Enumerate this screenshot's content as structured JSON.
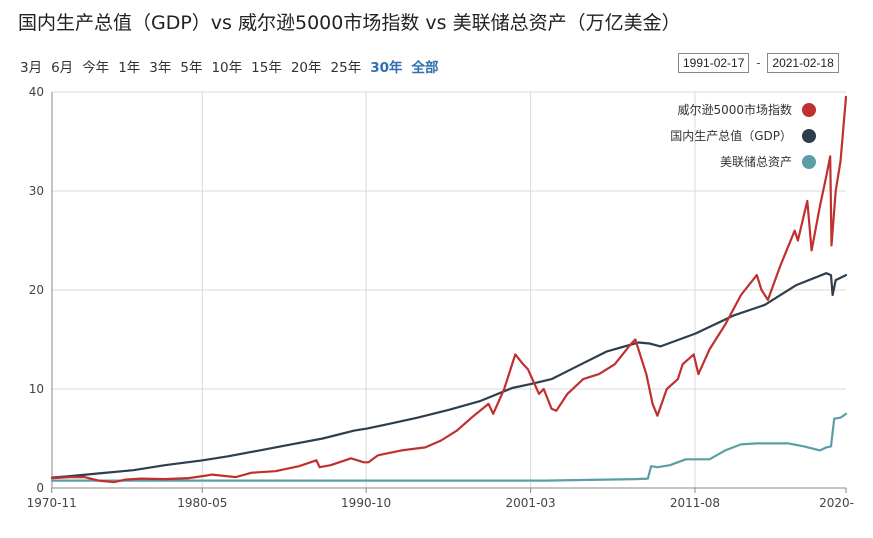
{
  "header": {
    "title": "国内生产总值（GDP）vs 威尔逊5000市场指数 vs 美联储总资产（万亿美金）"
  },
  "range_buttons": [
    "3月",
    "6月",
    "今年",
    "1年",
    "3年",
    "5年",
    "10年",
    "15年",
    "20年",
    "25年",
    "30年",
    "全部"
  ],
  "active_ranges": [
    "30年",
    "全部"
  ],
  "date_range": {
    "from": "1991-02-17",
    "separator": "-",
    "to": "2021-02-18"
  },
  "colors": {
    "wilshire": "#c0302e",
    "gdp": "#2f3e4c",
    "fed": "#5b9ea6",
    "grid": "#d9d9d9"
  },
  "chart_data": {
    "type": "line",
    "title": "国内生产总值（GDP）vs 威尔逊5000市场指数 vs 美联储总资产（万亿美金）",
    "x_type": "year",
    "xlim": [
      1970.85,
      2021.15
    ],
    "ylim": [
      0,
      40
    ],
    "y_ticks": [
      0,
      10,
      20,
      30,
      40
    ],
    "x_ticks": [
      {
        "label": "1970-11",
        "x": 1970.83
      },
      {
        "label": "1980-05",
        "x": 1980.37
      },
      {
        "label": "1990-10",
        "x": 1990.75
      },
      {
        "label": "2001-03",
        "x": 2001.17
      },
      {
        "label": "2011-08",
        "x": 2011.58
      },
      {
        "label": "2020-",
        "x": 2021.15
      }
    ],
    "grid": true,
    "legend_position": "top-right",
    "series": [
      {
        "name": "威尔逊5000市场指数",
        "color": "#c0302e",
        "points": [
          [
            1970.85,
            1.0
          ],
          [
            1972.0,
            1.1
          ],
          [
            1972.9,
            1.1
          ],
          [
            1973.8,
            0.75
          ],
          [
            1974.8,
            0.6
          ],
          [
            1975.5,
            0.85
          ],
          [
            1976.5,
            0.95
          ],
          [
            1978.0,
            0.9
          ],
          [
            1979.5,
            1.0
          ],
          [
            1980.4,
            1.2
          ],
          [
            1981.0,
            1.35
          ],
          [
            1982.5,
            1.1
          ],
          [
            1983.5,
            1.55
          ],
          [
            1985.0,
            1.7
          ],
          [
            1986.5,
            2.2
          ],
          [
            1987.6,
            2.8
          ],
          [
            1987.8,
            2.1
          ],
          [
            1988.5,
            2.3
          ],
          [
            1989.8,
            3.0
          ],
          [
            1990.6,
            2.6
          ],
          [
            1990.9,
            2.6
          ],
          [
            1991.5,
            3.3
          ],
          [
            1993.0,
            3.8
          ],
          [
            1994.5,
            4.1
          ],
          [
            1995.5,
            4.8
          ],
          [
            1996.5,
            5.8
          ],
          [
            1997.5,
            7.2
          ],
          [
            1998.5,
            8.5
          ],
          [
            1998.8,
            7.5
          ],
          [
            1999.5,
            10.0
          ],
          [
            2000.2,
            13.5
          ],
          [
            2000.7,
            12.5
          ],
          [
            2001.0,
            12.0
          ],
          [
            2001.7,
            9.5
          ],
          [
            2002.0,
            10.0
          ],
          [
            2002.5,
            8.0
          ],
          [
            2002.8,
            7.8
          ],
          [
            2003.5,
            9.5
          ],
          [
            2004.5,
            11.0
          ],
          [
            2005.5,
            11.5
          ],
          [
            2006.5,
            12.5
          ],
          [
            2007.5,
            14.5
          ],
          [
            2007.8,
            15.0
          ],
          [
            2008.5,
            11.5
          ],
          [
            2008.9,
            8.5
          ],
          [
            2009.2,
            7.3
          ],
          [
            2009.8,
            10.0
          ],
          [
            2010.5,
            11.0
          ],
          [
            2010.8,
            12.5
          ],
          [
            2011.5,
            13.5
          ],
          [
            2011.8,
            11.5
          ],
          [
            2012.5,
            14.0
          ],
          [
            2013.5,
            16.5
          ],
          [
            2014.5,
            19.5
          ],
          [
            2015.5,
            21.5
          ],
          [
            2015.8,
            20.0
          ],
          [
            2016.2,
            19.0
          ],
          [
            2017.0,
            22.5
          ],
          [
            2017.9,
            26.0
          ],
          [
            2018.1,
            25.0
          ],
          [
            2018.7,
            29.0
          ],
          [
            2018.97,
            24.0
          ],
          [
            2019.5,
            28.5
          ],
          [
            2019.9,
            31.5
          ],
          [
            2020.15,
            33.5
          ],
          [
            2020.23,
            24.5
          ],
          [
            2020.5,
            30.0
          ],
          [
            2020.8,
            33.0
          ],
          [
            2021.15,
            39.5
          ]
        ]
      },
      {
        "name": "国内生产总值（GDP）",
        "color": "#2f3e4c",
        "points": [
          [
            1970.85,
            1.05
          ],
          [
            1972.0,
            1.2
          ],
          [
            1974.0,
            1.5
          ],
          [
            1976.0,
            1.8
          ],
          [
            1978.0,
            2.3
          ],
          [
            1980.4,
            2.8
          ],
          [
            1982.0,
            3.2
          ],
          [
            1984.0,
            3.8
          ],
          [
            1986.0,
            4.4
          ],
          [
            1988.0,
            5.0
          ],
          [
            1990.0,
            5.8
          ],
          [
            1990.8,
            6.0
          ],
          [
            1992.0,
            6.4
          ],
          [
            1994.0,
            7.1
          ],
          [
            1996.0,
            7.9
          ],
          [
            1998.0,
            8.8
          ],
          [
            2000.0,
            10.1
          ],
          [
            2001.17,
            10.5
          ],
          [
            2002.5,
            11.0
          ],
          [
            2004.0,
            12.2
          ],
          [
            2006.0,
            13.8
          ],
          [
            2008.0,
            14.7
          ],
          [
            2008.7,
            14.6
          ],
          [
            2009.4,
            14.3
          ],
          [
            2011.6,
            15.6
          ],
          [
            2014.0,
            17.4
          ],
          [
            2016.0,
            18.5
          ],
          [
            2018.0,
            20.5
          ],
          [
            2019.9,
            21.7
          ],
          [
            2020.2,
            21.5
          ],
          [
            2020.3,
            19.5
          ],
          [
            2020.5,
            21.0
          ],
          [
            2021.15,
            21.5
          ]
        ]
      },
      {
        "name": "美联储总资产",
        "color": "#5b9ea6",
        "points": [
          [
            1970.85,
            0.75
          ],
          [
            1990.0,
            0.75
          ],
          [
            2002.0,
            0.75
          ],
          [
            2007.8,
            0.9
          ],
          [
            2008.6,
            0.95
          ],
          [
            2008.8,
            2.2
          ],
          [
            2009.2,
            2.1
          ],
          [
            2010.0,
            2.3
          ],
          [
            2011.0,
            2.9
          ],
          [
            2012.5,
            2.9
          ],
          [
            2013.5,
            3.8
          ],
          [
            2014.5,
            4.4
          ],
          [
            2015.5,
            4.5
          ],
          [
            2017.5,
            4.5
          ],
          [
            2018.5,
            4.2
          ],
          [
            2019.5,
            3.8
          ],
          [
            2019.9,
            4.1
          ],
          [
            2020.2,
            4.2
          ],
          [
            2020.4,
            7.0
          ],
          [
            2020.8,
            7.1
          ],
          [
            2021.15,
            7.5
          ]
        ]
      }
    ]
  }
}
